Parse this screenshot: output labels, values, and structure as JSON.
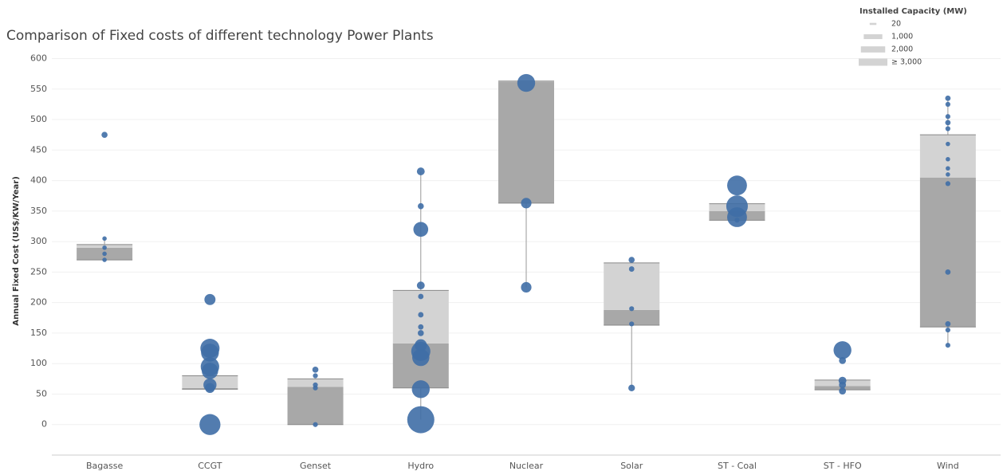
{
  "chart_data": {
    "type": "box",
    "title": "Comparison of Fixed costs of different technology Power Plants",
    "y_label": "Annual Fixed Cost (US$/KW/Year)",
    "categories": [
      "Bagasse",
      "CCGT",
      "Genset",
      "Hydro",
      "Nuclear",
      "Solar",
      "ST - Coal",
      "ST - HFO",
      "Wind"
    ],
    "ylim": [
      -50,
      615
    ],
    "yticks": [
      0,
      50,
      100,
      150,
      200,
      250,
      300,
      350,
      400,
      450,
      500,
      550,
      600
    ],
    "grid": true,
    "point_color": "#3f6ea6",
    "box_colors": {
      "lower": "#a8a8a8",
      "upper": "#d3d3d3"
    },
    "size_legend_title": "Installed Capacity (MW)",
    "size_legend": [
      {
        "value": 20,
        "label": "20"
      },
      {
        "value": 1000,
        "label": "1,000"
      },
      {
        "value": 2000,
        "label": "2,000"
      },
      {
        "value": 3000,
        "label": "≥ 3,000"
      }
    ],
    "boxes": [
      {
        "q1": 270,
        "median": 290,
        "q3": 295,
        "whisker_low": 270,
        "whisker_high": 305,
        "points": [
          475,
          305,
          290,
          280,
          270
        ],
        "sizes": [
          150,
          80,
          80,
          80,
          80
        ]
      },
      {
        "q1": 58,
        "median": 60,
        "q3": 80,
        "whisker_low": 58,
        "whisker_high": 80,
        "points": [
          205,
          125,
          118,
          95,
          88,
          65,
          60,
          0
        ],
        "sizes": [
          500,
          1500,
          1300,
          1400,
          1100,
          700,
          400,
          1800
        ]
      },
      {
        "q1": 0,
        "median": 62,
        "q3": 75,
        "whisker_low": 0,
        "whisker_high": 75,
        "points": [
          90,
          80,
          65,
          60,
          0
        ],
        "sizes": [
          150,
          100,
          100,
          100,
          100
        ]
      },
      {
        "q1": 60,
        "median": 133,
        "q3": 220,
        "whisker_low": 8,
        "whisker_high": 415,
        "points": [
          415,
          358,
          320,
          228,
          210,
          180,
          160,
          150,
          130,
          120,
          110,
          58,
          8
        ],
        "sizes": [
          250,
          150,
          900,
          250,
          120,
          120,
          120,
          150,
          600,
          1500,
          1200,
          1300,
          3000
        ]
      },
      {
        "q1": 363,
        "median": 563,
        "q3": 563,
        "whisker_low": 225,
        "whisker_high": 563,
        "points": [
          560,
          363,
          225
        ],
        "sizes": [
          1300,
          450,
          450
        ]
      },
      {
        "q1": 163,
        "median": 188,
        "q3": 265,
        "whisker_low": 60,
        "whisker_high": 270,
        "points": [
          270,
          255,
          190,
          165,
          60
        ],
        "sizes": [
          150,
          120,
          100,
          100,
          180
        ]
      },
      {
        "q1": 335,
        "median": 350,
        "q3": 362,
        "whisker_low": 335,
        "whisker_high": 362,
        "points": [
          392,
          358,
          340,
          335
        ],
        "sizes": [
          1600,
          1900,
          1600,
          100
        ]
      },
      {
        "q1": 57,
        "median": 63,
        "q3": 73,
        "whisker_low": 57,
        "whisker_high": 73,
        "points": [
          122,
          105,
          72,
          65,
          55
        ],
        "sizes": [
          1300,
          200,
          250,
          200,
          200
        ]
      },
      {
        "q1": 160,
        "median": 405,
        "q3": 475,
        "whisker_low": 130,
        "whisker_high": 535,
        "points": [
          535,
          525,
          505,
          495,
          485,
          460,
          435,
          420,
          410,
          395,
          250,
          165,
          155,
          130
        ],
        "sizes": [
          120,
          100,
          100,
          120,
          100,
          80,
          80,
          80,
          80,
          100,
          120,
          120,
          100,
          100
        ]
      }
    ]
  }
}
